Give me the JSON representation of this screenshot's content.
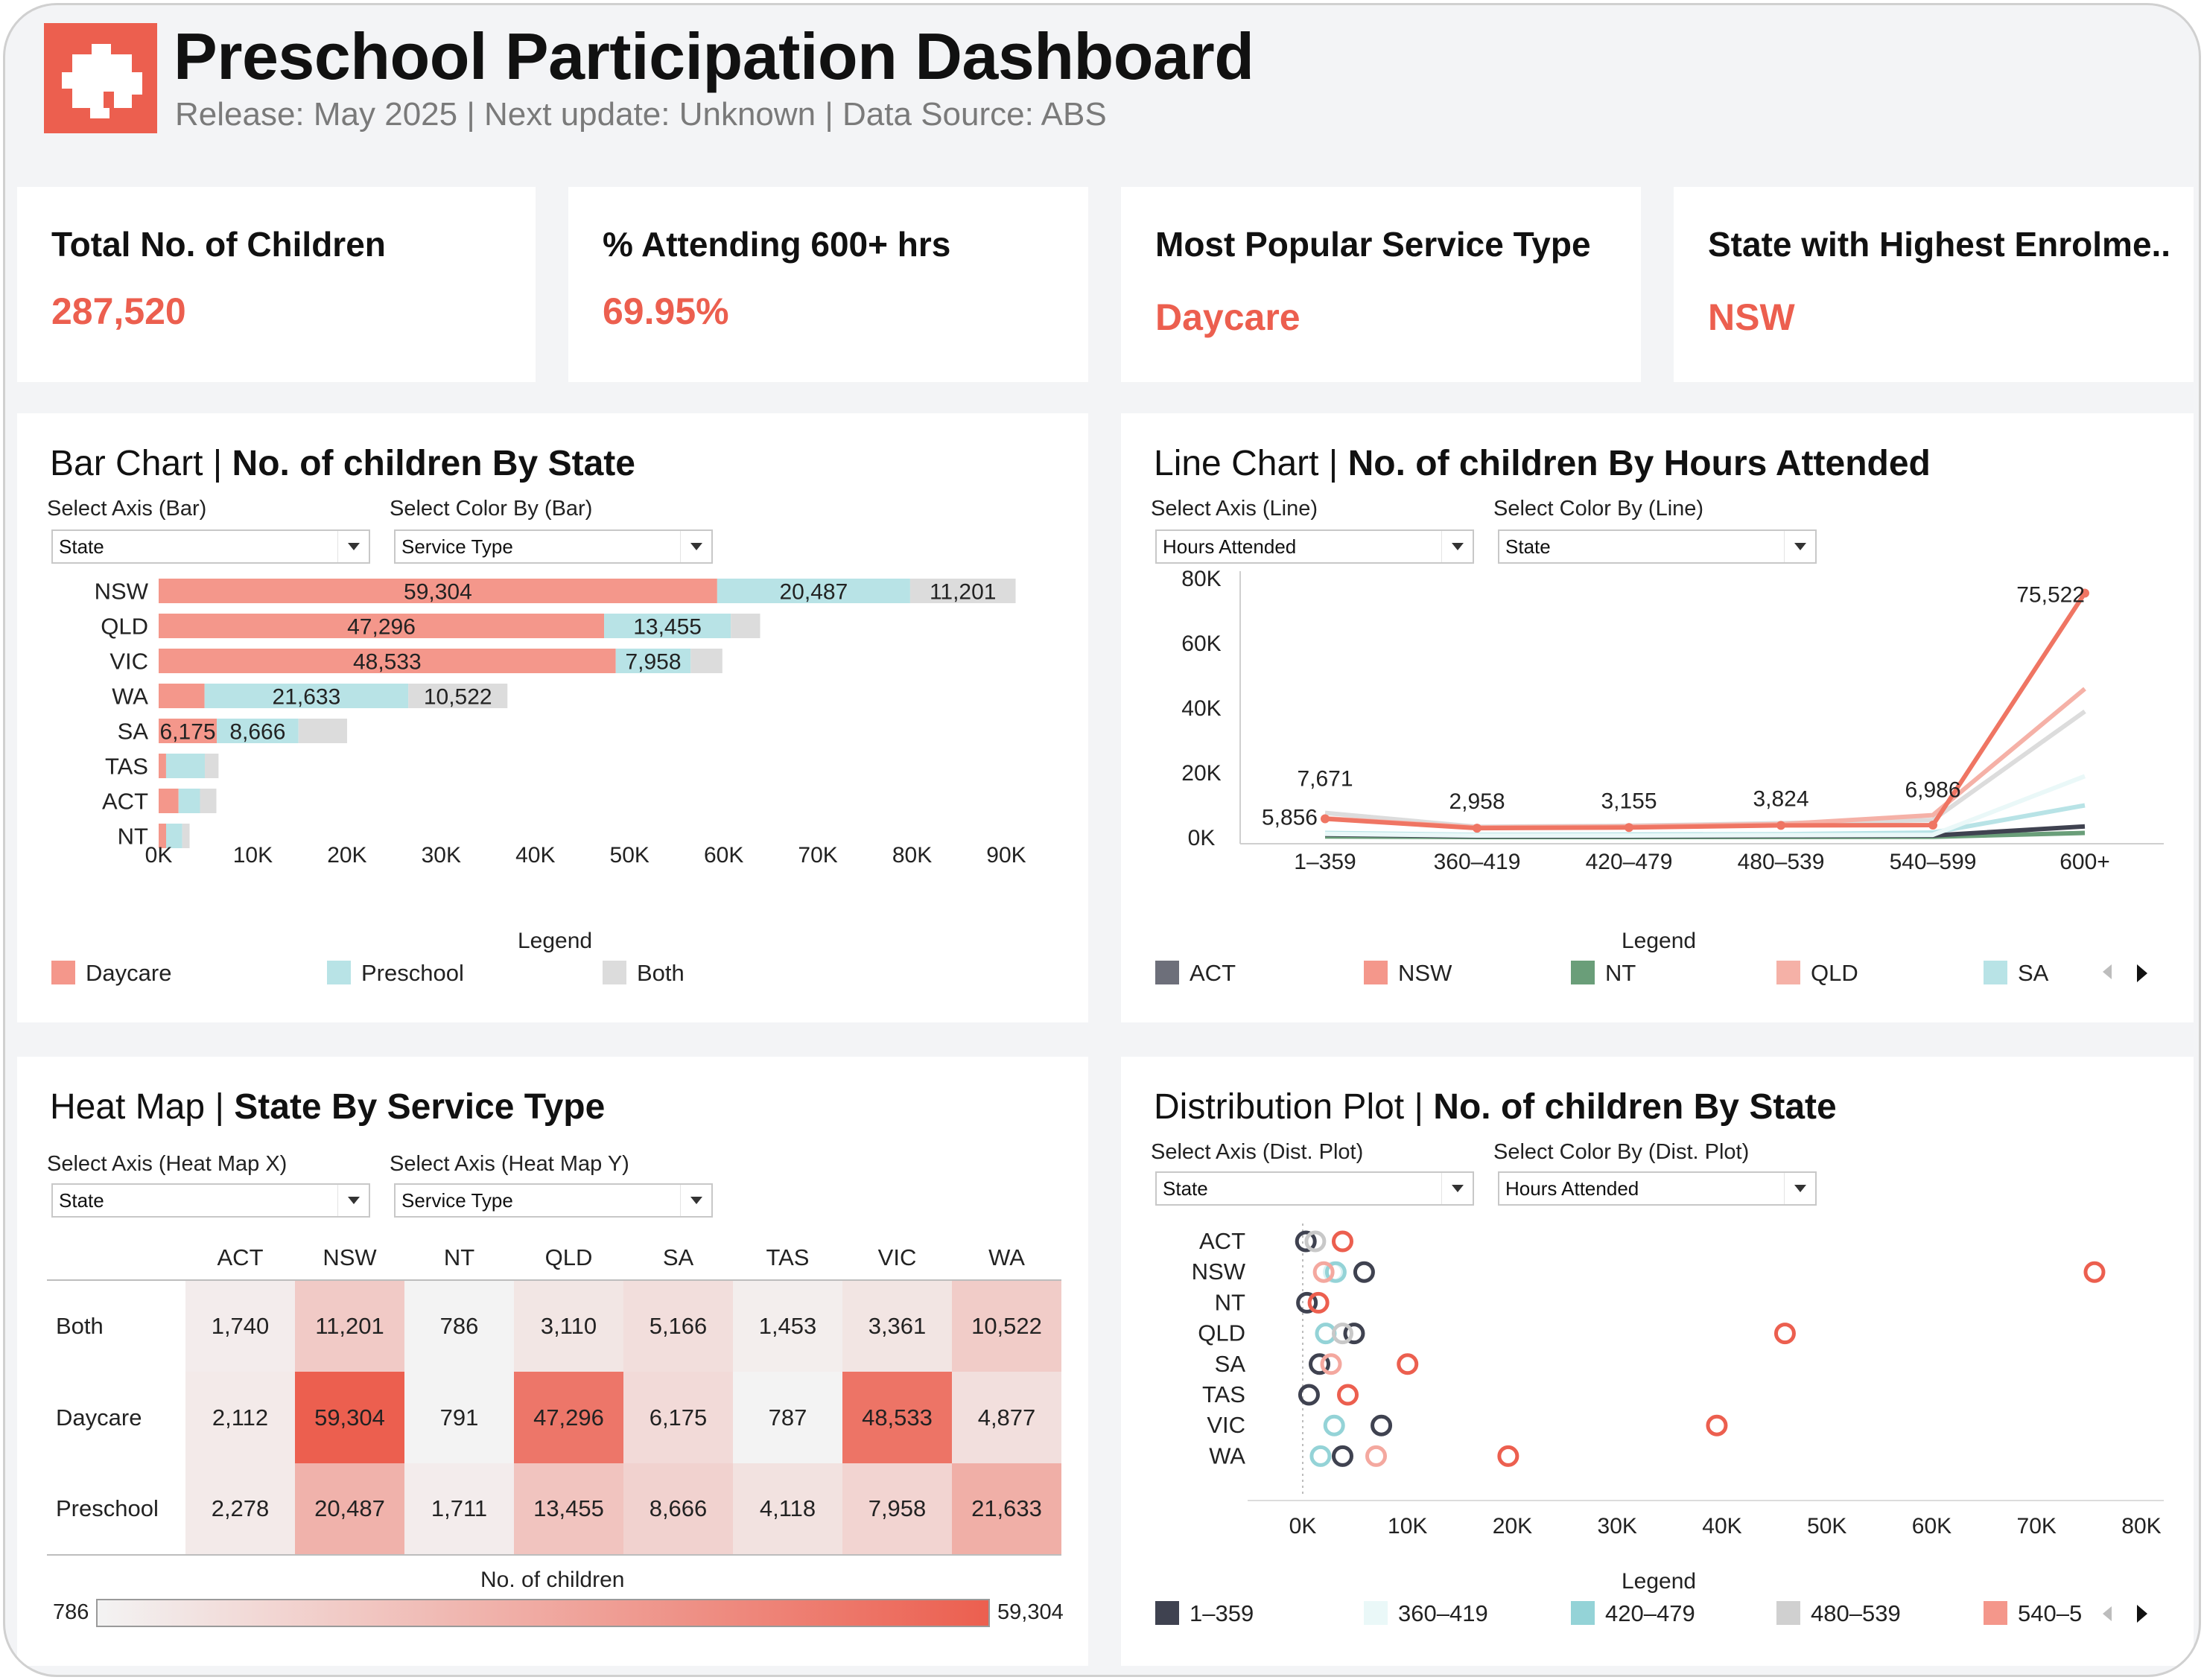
{
  "header": {
    "title": "Preschool Participation Dashboard",
    "subtitle": "Release: May 2025 | Next update: Unknown | Data Source: ABS"
  },
  "kpis": [
    {
      "label": "Total No. of Children",
      "value": "287,520"
    },
    {
      "label": "% Attending 600+ hrs",
      "value": "69.95%"
    },
    {
      "label": "Most Popular Service Type",
      "value": "Daycare"
    },
    {
      "label": "State with Highest Enrolme..",
      "value": "NSW"
    }
  ],
  "colors": {
    "accent": "#ec5f4f",
    "daycare": "#f4978b",
    "preschool": "#b8e3e6",
    "both": "#dcdcdc",
    "act": "#6d6f7a",
    "nsw": "#f4978b",
    "nt": "#6a9e79",
    "qld": "#f5b1a7",
    "sa": "#b8e3e6"
  },
  "bar_panel": {
    "title_prefix": "Bar Chart | ",
    "title_bold": "No. of children By State",
    "axis_label": "Select Axis (Bar)",
    "axis_value": "State",
    "color_label": "Select Color By (Bar)",
    "color_value": "Service Type",
    "legend_title": "Legend",
    "legend": [
      "Daycare",
      "Preschool",
      "Both"
    ]
  },
  "line_panel": {
    "title_prefix": "Line Chart | ",
    "title_bold": "No. of children By Hours Attended",
    "axis_label": "Select Axis (Line)",
    "axis_value": "Hours Attended",
    "color_label": "Select Color By (Line)",
    "color_value": "State",
    "legend_title": "Legend",
    "legend": [
      "ACT",
      "NSW",
      "NT",
      "QLD",
      "SA"
    ]
  },
  "heat_panel": {
    "title_prefix": "Heat Map | ",
    "title_bold": "State By Service Type",
    "x_label": "Select Axis (Heat Map X)",
    "x_value": "State",
    "y_label": "Select Axis (Heat Map Y)",
    "y_value": "Service Type",
    "columns": [
      "ACT",
      "NSW",
      "NT",
      "QLD",
      "SA",
      "TAS",
      "VIC",
      "WA"
    ],
    "rows": [
      {
        "name": "Both",
        "values": [
          "1,740",
          "11,201",
          "786",
          "3,110",
          "5,166",
          "1,453",
          "3,361",
          "10,522"
        ]
      },
      {
        "name": "Daycare",
        "values": [
          "2,112",
          "59,304",
          "791",
          "47,296",
          "6,175",
          "787",
          "48,533",
          "4,877"
        ]
      },
      {
        "name": "Preschool",
        "values": [
          "2,278",
          "20,487",
          "1,711",
          "13,455",
          "8,666",
          "4,118",
          "7,958",
          "21,633"
        ]
      }
    ],
    "scale_title": "No. of children",
    "scale_min": "786",
    "scale_max": "59,304"
  },
  "dist_panel": {
    "title_prefix": "Distribution Plot | ",
    "title_bold": "No. of children By State",
    "axis_label": "Select Axis (Dist. Plot)",
    "axis_value": "State",
    "color_label": "Select Color By (Dist. Plot)",
    "color_value": "Hours Attended",
    "legend_title": "Legend",
    "legend": [
      "1–359",
      "360–419",
      "420–479",
      "480–539",
      "540–5"
    ]
  },
  "chart_data": [
    {
      "type": "bar",
      "orientation": "horizontal",
      "stacked": true,
      "categories": [
        "NSW",
        "QLD",
        "VIC",
        "WA",
        "SA",
        "TAS",
        "ACT",
        "NT"
      ],
      "series": [
        {
          "name": "Daycare",
          "values": [
            59304,
            47296,
            48533,
            4877,
            6175,
            787,
            2112,
            791
          ]
        },
        {
          "name": "Preschool",
          "values": [
            20487,
            13455,
            7958,
            21633,
            8666,
            4118,
            2278,
            1711
          ]
        },
        {
          "name": "Both",
          "values": [
            11201,
            3110,
            3361,
            10522,
            5166,
            1453,
            1740,
            786
          ]
        }
      ],
      "data_labels": [
        [
          "59,304",
          "20,487",
          "11,201"
        ],
        [
          "47,296",
          "13,455",
          ""
        ],
        [
          "48,533",
          "7,958",
          ""
        ],
        [
          "",
          "21,633",
          "10,522"
        ],
        [
          "6,175",
          "8,666",
          ""
        ],
        [
          "",
          "",
          ""
        ],
        [
          "",
          "",
          ""
        ],
        [
          "",
          "",
          ""
        ]
      ],
      "x_ticks": [
        "0K",
        "10K",
        "20K",
        "30K",
        "40K",
        "50K",
        "60K",
        "70K",
        "80K",
        "90K"
      ],
      "xlim": [
        0,
        90000
      ]
    },
    {
      "type": "line",
      "x": [
        "1–359",
        "360–419",
        "420–479",
        "480–539",
        "540–599",
        "600+"
      ],
      "y_ticks": [
        "0K",
        "20K",
        "40K",
        "60K",
        "80K"
      ],
      "ylim": [
        0,
        80000
      ],
      "series": [
        {
          "name": "NSW",
          "values": [
            5856,
            2958,
            3155,
            3824,
            3900,
            75522
          ],
          "color": "#ef7563",
          "width": 6
        },
        {
          "name": "QLD",
          "values": [
            6000,
            3200,
            3500,
            4200,
            6986,
            46000
          ],
          "color": "#f5b1a7",
          "width": 6
        },
        {
          "name": "VIC",
          "values": [
            7671,
            3400,
            3700,
            4500,
            5500,
            39000
          ],
          "color": "#dcdcdc",
          "width": 6
        },
        {
          "name": "TAS",
          "values": [
            1200,
            700,
            700,
            800,
            900,
            19000
          ],
          "color": "#eaf8f8",
          "width": 6
        },
        {
          "name": "SA",
          "values": [
            1500,
            900,
            1000,
            1100,
            1600,
            10000
          ],
          "color": "#b8e3e6",
          "width": 6
        },
        {
          "name": "ACT",
          "values": [
            1000,
            500,
            500,
            600,
            700,
            3500
          ],
          "color": "#3f4250",
          "width": 6
        },
        {
          "name": "NT",
          "values": [
            400,
            200,
            200,
            250,
            300,
            1500
          ],
          "color": "#6a9e79",
          "width": 6
        }
      ],
      "point_labels": [
        {
          "x": "1–359",
          "text": "7,671"
        },
        {
          "x": "1–359",
          "text": "5,856"
        },
        {
          "x": "360–419",
          "text": "2,958"
        },
        {
          "x": "420–479",
          "text": "3,155"
        },
        {
          "x": "480–539",
          "text": "3,824"
        },
        {
          "x": "540–599",
          "text": "6,986"
        },
        {
          "x": "600+",
          "text": "75,522"
        }
      ]
    },
    {
      "type": "scatter",
      "categories": [
        "ACT",
        "NSW",
        "NT",
        "QLD",
        "SA",
        "TAS",
        "VIC",
        "WA"
      ],
      "x_ticks": [
        "0K",
        "10K",
        "20K",
        "30K",
        "40K",
        "50K",
        "60K",
        "70K",
        "80K"
      ],
      "xlim": [
        0,
        80000
      ],
      "xlabel": "No. of children",
      "points": [
        {
          "state": "ACT",
          "x": 300,
          "group": "1–359"
        },
        {
          "state": "ACT",
          "x": 1200,
          "group": "480–539"
        },
        {
          "state": "ACT",
          "x": 3800,
          "group": "600+"
        },
        {
          "state": "NSW",
          "x": 5856,
          "group": "1–359"
        },
        {
          "state": "NSW",
          "x": 2958,
          "group": "360–419"
        },
        {
          "state": "NSW",
          "x": 3155,
          "group": "420–479"
        },
        {
          "state": "NSW",
          "x": 2000,
          "group": "540–599"
        },
        {
          "state": "NSW",
          "x": 75522,
          "group": "600+"
        },
        {
          "state": "NT",
          "x": 400,
          "group": "1–359"
        },
        {
          "state": "NT",
          "x": 1500,
          "group": "600+"
        },
        {
          "state": "QLD",
          "x": 4900,
          "group": "1–359"
        },
        {
          "state": "QLD",
          "x": 2200,
          "group": "420–479"
        },
        {
          "state": "QLD",
          "x": 3800,
          "group": "480–539"
        },
        {
          "state": "QLD",
          "x": 46000,
          "group": "600+"
        },
        {
          "state": "SA",
          "x": 1600,
          "group": "1–359"
        },
        {
          "state": "SA",
          "x": 2700,
          "group": "540–599"
        },
        {
          "state": "SA",
          "x": 10000,
          "group": "600+"
        },
        {
          "state": "TAS",
          "x": 600,
          "group": "1–359"
        },
        {
          "state": "TAS",
          "x": 4300,
          "group": "600+"
        },
        {
          "state": "VIC",
          "x": 7500,
          "group": "1–359"
        },
        {
          "state": "VIC",
          "x": 3000,
          "group": "420–479"
        },
        {
          "state": "VIC",
          "x": 39500,
          "group": "600+"
        },
        {
          "state": "WA",
          "x": 3800,
          "group": "1–359"
        },
        {
          "state": "WA",
          "x": 1700,
          "group": "420–479"
        },
        {
          "state": "WA",
          "x": 7000,
          "group": "540–599"
        },
        {
          "state": "WA",
          "x": 19600,
          "group": "600+"
        }
      ]
    }
  ]
}
